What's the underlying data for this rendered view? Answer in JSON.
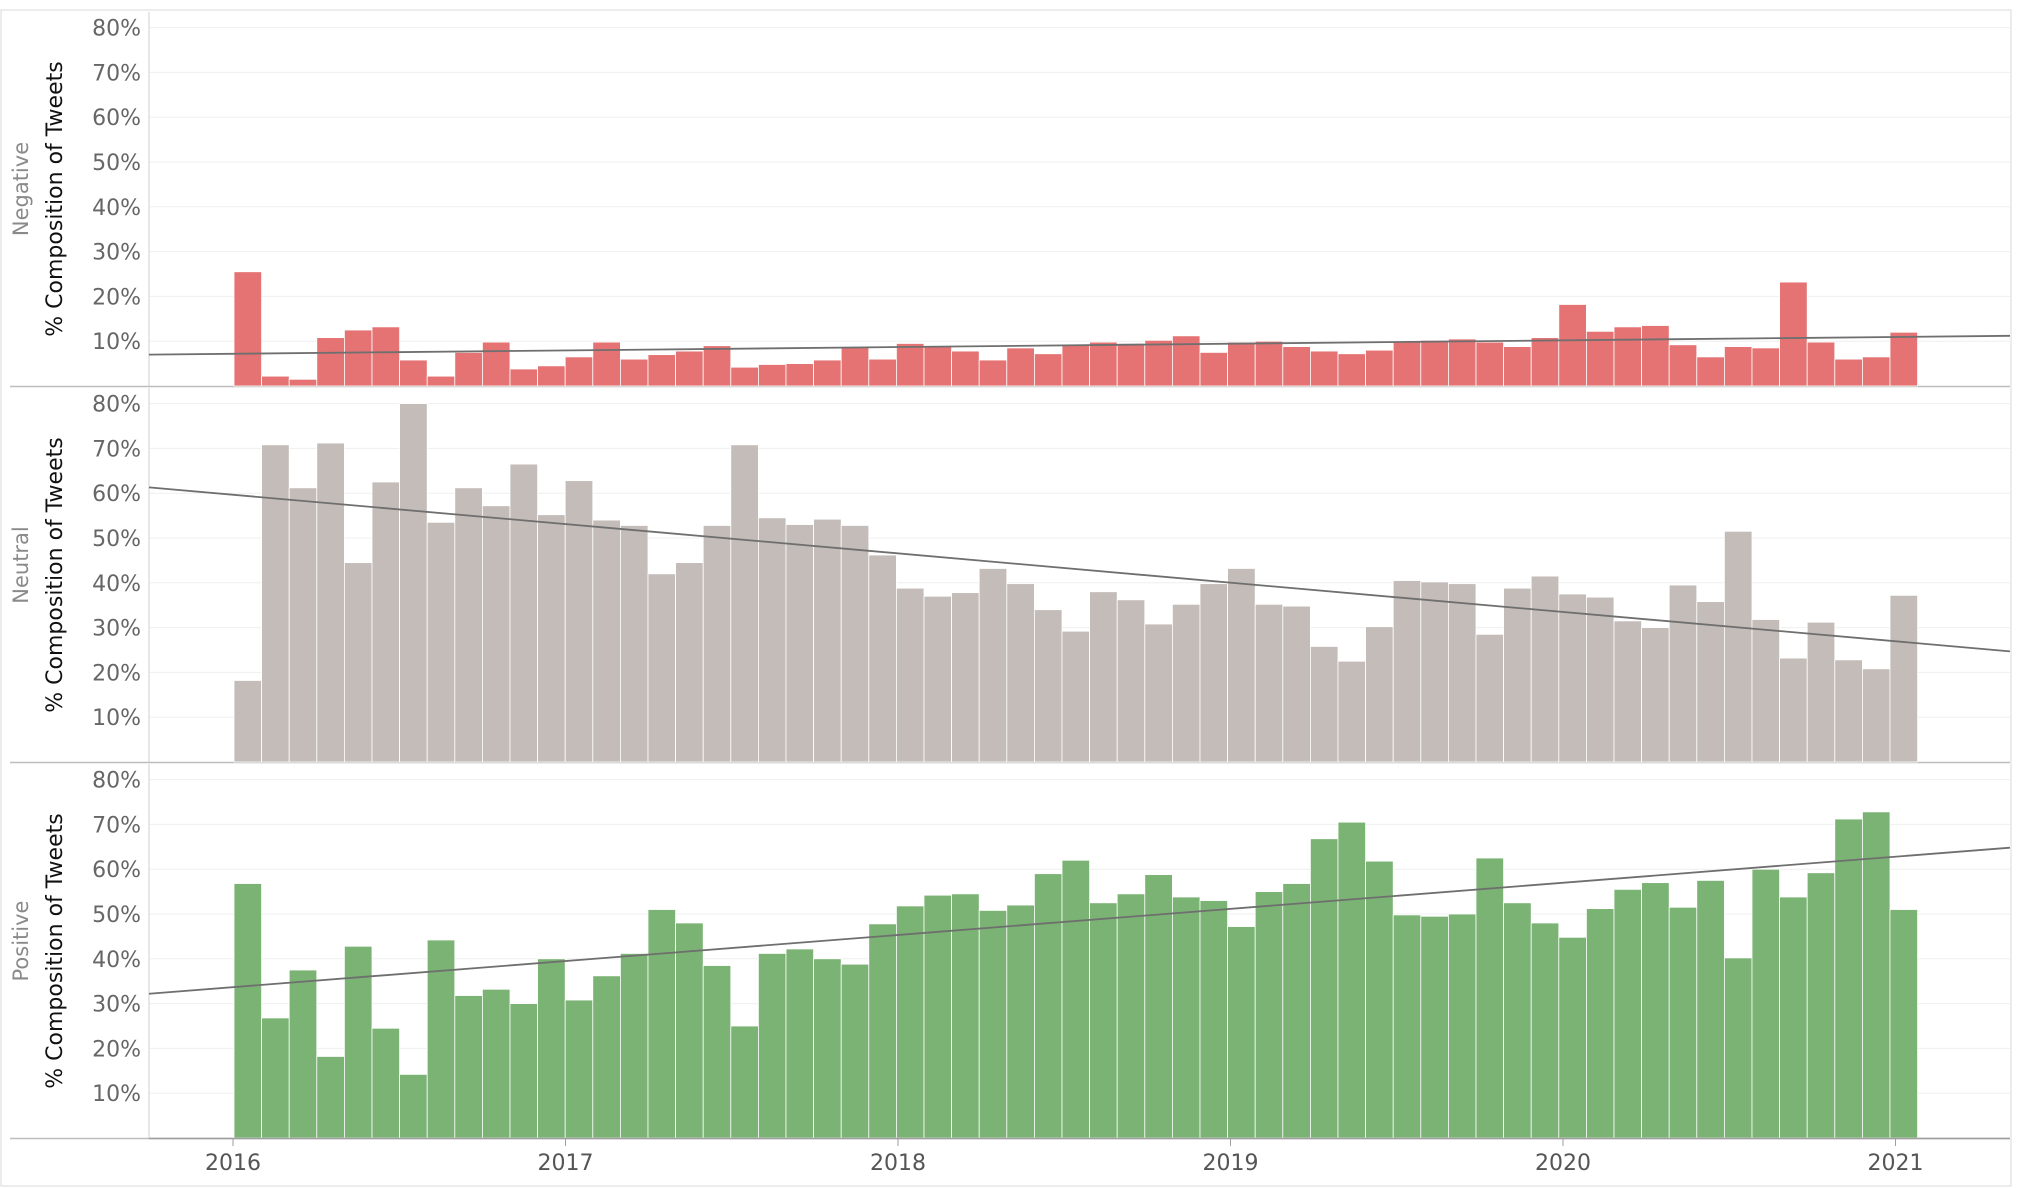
{
  "chart_data": {
    "type": "bar",
    "y_axis_title": "% Composition of Tweets",
    "y_ticks": [
      "10%",
      "20%",
      "30%",
      "40%",
      "50%",
      "60%",
      "70%",
      "80%"
    ],
    "y_tick_values": [
      10,
      20,
      30,
      40,
      50,
      60,
      70,
      80
    ],
    "ylim": [
      0,
      80
    ],
    "x_tick_labels": [
      "2016",
      "2017",
      "2018",
      "2019",
      "2020",
      "2021"
    ],
    "x_start": "2016-01",
    "grid": true,
    "trend_lines": true,
    "panels": [
      {
        "label": "Negative",
        "color": "#e57373",
        "values": [
          25.5,
          2.2,
          1.5,
          10.8,
          12.5,
          13.2,
          5.8,
          2.2,
          7.5,
          9.8,
          3.8,
          4.5,
          6.5,
          9.8,
          6.0,
          7.0,
          7.8,
          9.0,
          4.2,
          4.8,
          5.0,
          5.8,
          8.8,
          6.0,
          9.5,
          9.0,
          7.8,
          5.8,
          8.5,
          7.2,
          9.2,
          9.8,
          9.5,
          10.2,
          11.2,
          7.5,
          9.8,
          10.0,
          8.8,
          7.8,
          7.2,
          8.0,
          10.0,
          10.2,
          10.5,
          9.8,
          8.8,
          10.8,
          18.2,
          12.2,
          13.2,
          13.5,
          9.2,
          6.5,
          8.8,
          8.5,
          23.2,
          9.8,
          6.0,
          6.5,
          12.0
        ],
        "trend": [
          7.0,
          11.2
        ]
      },
      {
        "label": "Neutral",
        "color": "#c3bcb8",
        "values": [
          18.2,
          70.8,
          61.2,
          71.2,
          44.5,
          62.5,
          80.0,
          53.5,
          61.2,
          57.2,
          66.5,
          55.2,
          62.8,
          54.0,
          52.8,
          42.0,
          44.5,
          52.8,
          70.8,
          54.5,
          53.0,
          54.2,
          52.8,
          46.2,
          38.8,
          37.0,
          37.8,
          43.2,
          39.8,
          34.0,
          29.2,
          38.0,
          36.2,
          30.8,
          35.2,
          39.8,
          43.2,
          35.2,
          34.8,
          25.8,
          22.5,
          30.2,
          40.5,
          40.2,
          39.8,
          28.5,
          38.8,
          41.5,
          37.5,
          36.8,
          31.5,
          30.0,
          39.5,
          35.8,
          51.5,
          31.8,
          23.2,
          31.2,
          22.8,
          20.8,
          37.2
        ],
        "trend": [
          61.3,
          24.7
        ]
      },
      {
        "label": "Positive",
        "color": "#7ab373",
        "values": [
          56.8,
          26.8,
          37.5,
          18.2,
          42.8,
          24.5,
          14.2,
          44.2,
          31.8,
          33.2,
          30.0,
          40.0,
          30.8,
          36.2,
          41.2,
          51.0,
          48.0,
          38.5,
          25.0,
          41.2,
          42.2,
          40.0,
          38.8,
          47.8,
          51.8,
          54.2,
          54.5,
          50.8,
          52.0,
          59.0,
          62.0,
          52.5,
          54.5,
          58.8,
          53.8,
          53.0,
          47.2,
          55.0,
          56.8,
          66.8,
          70.5,
          61.8,
          49.8,
          49.5,
          50.0,
          62.5,
          52.5,
          48.0,
          44.8,
          51.2,
          55.5,
          57.0,
          51.5,
          57.5,
          40.2,
          60.0,
          53.8,
          59.2,
          71.2,
          72.8,
          51.0
        ],
        "trend": [
          32.2,
          64.8
        ]
      }
    ]
  }
}
